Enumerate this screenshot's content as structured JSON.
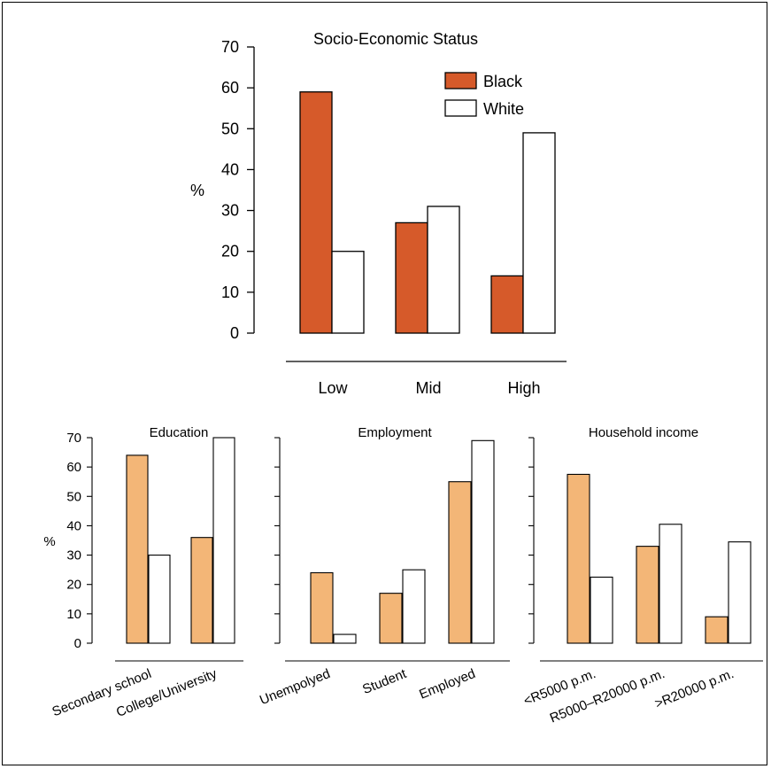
{
  "chart_data": [
    {
      "type": "bar",
      "title": "Socio-Economic Status",
      "ylabel": "%",
      "xlabel": "",
      "categories": [
        "Low",
        "Mid",
        "High"
      ],
      "ylim": [
        0,
        70
      ],
      "yticks": [
        0,
        10,
        20,
        30,
        40,
        50,
        60,
        70
      ],
      "legend": "top-right",
      "series": [
        {
          "name": "Black",
          "color": "#d65a2a",
          "values": [
            59,
            27,
            14
          ]
        },
        {
          "name": "White",
          "color": "#ffffff",
          "values": [
            20,
            31,
            49
          ]
        }
      ]
    },
    {
      "type": "bar",
      "title": "Education",
      "ylabel": "%",
      "xlabel": "",
      "categories": [
        "Secondary school",
        "College/University"
      ],
      "ylim": [
        0,
        70
      ],
      "yticks": [
        0,
        10,
        20,
        30,
        40,
        50,
        60,
        70
      ],
      "series": [
        {
          "name": "Black",
          "color": "#f3b677",
          "values": [
            64,
            36
          ]
        },
        {
          "name": "White",
          "color": "#ffffff",
          "values": [
            30,
            70
          ]
        }
      ]
    },
    {
      "type": "bar",
      "title": "Employment",
      "ylabel": "",
      "xlabel": "",
      "categories": [
        "Unempolyed",
        "Student",
        "Employed"
      ],
      "ylim": [
        0,
        70
      ],
      "yticks": [
        0,
        10,
        20,
        30,
        40,
        50,
        60,
        70
      ],
      "series": [
        {
          "name": "Black",
          "color": "#f3b677",
          "values": [
            24,
            17,
            55
          ]
        },
        {
          "name": "White",
          "color": "#ffffff",
          "values": [
            3,
            25,
            69
          ]
        }
      ]
    },
    {
      "type": "bar",
      "title": "Household income",
      "ylabel": "",
      "xlabel": "",
      "categories": [
        "<R5000 p.m.",
        "R5000–R20000 p.m.",
        ">R20000 p.m."
      ],
      "ylim": [
        0,
        70
      ],
      "yticks": [
        0,
        10,
        20,
        30,
        40,
        50,
        60,
        70
      ],
      "series": [
        {
          "name": "Black",
          "color": "#f3b677",
          "values": [
            57.5,
            33,
            9
          ]
        },
        {
          "name": "White",
          "color": "#ffffff",
          "values": [
            22.5,
            40.5,
            34.5
          ]
        }
      ]
    }
  ]
}
